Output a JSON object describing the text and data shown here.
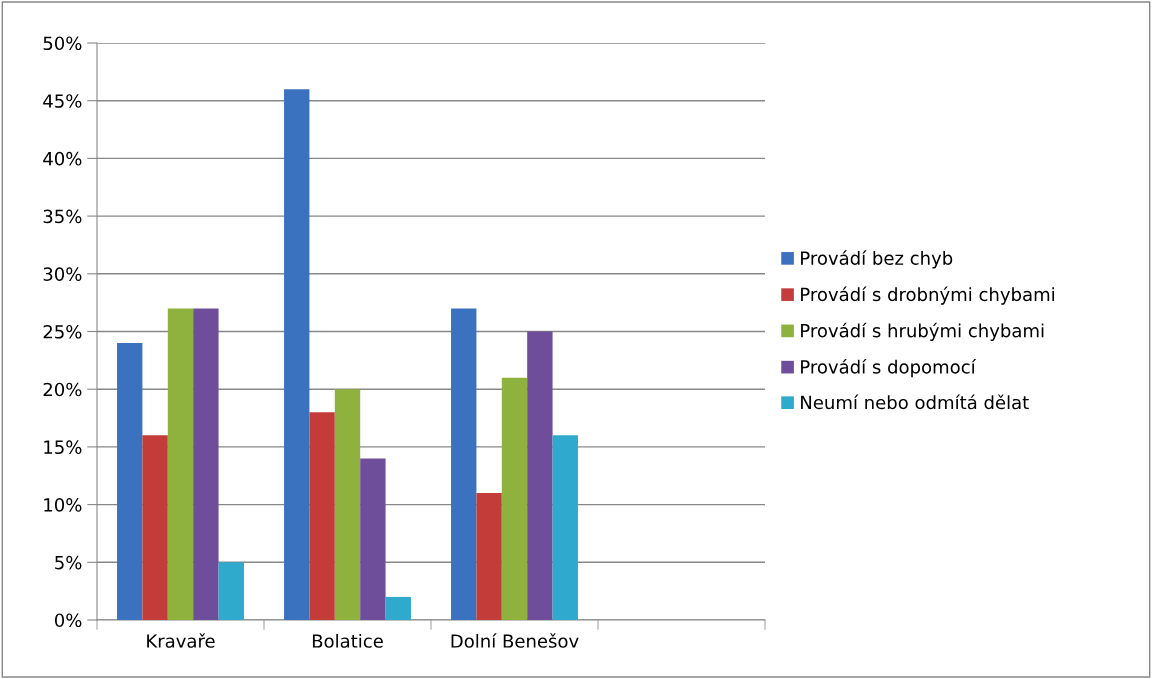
{
  "chart_data": {
    "type": "bar",
    "categories": [
      "Kravaře",
      "Bolatice",
      "Dolní Benešov",
      null
    ],
    "series": [
      {
        "name": "Provádí bez chyb",
        "color": "#3b72bf",
        "values": [
          24,
          46,
          27,
          null
        ]
      },
      {
        "name": "Provádí s drobnými chybami",
        "color": "#c43c39",
        "values": [
          16,
          18,
          11,
          null
        ]
      },
      {
        "name": "Provádí s hrubými chybami",
        "color": "#8fb23f",
        "values": [
          27,
          20,
          21,
          null
        ]
      },
      {
        "name": "Provádí s dopomocí",
        "color": "#6e4e9a",
        "values": [
          27,
          14,
          25,
          null
        ]
      },
      {
        "name": "Neumí nebo odmítá dělat",
        "color": "#2fa9cc",
        "values": [
          5,
          2,
          16,
          null
        ]
      }
    ],
    "ylim": [
      0,
      50
    ],
    "yticks": [
      {
        "value": 0,
        "label": "0%"
      },
      {
        "value": 5,
        "label": "5%"
      },
      {
        "value": 10,
        "label": "10%"
      },
      {
        "value": 15,
        "label": "15%"
      },
      {
        "value": 20,
        "label": "20%"
      },
      {
        "value": 25,
        "label": "25%"
      },
      {
        "value": 30,
        "label": "30%"
      },
      {
        "value": 35,
        "label": "35%"
      },
      {
        "value": 40,
        "label": "40%"
      },
      {
        "value": 45,
        "label": "45%"
      },
      {
        "value": 50,
        "label": "50%"
      }
    ],
    "grid": "y",
    "legend": "right"
  }
}
